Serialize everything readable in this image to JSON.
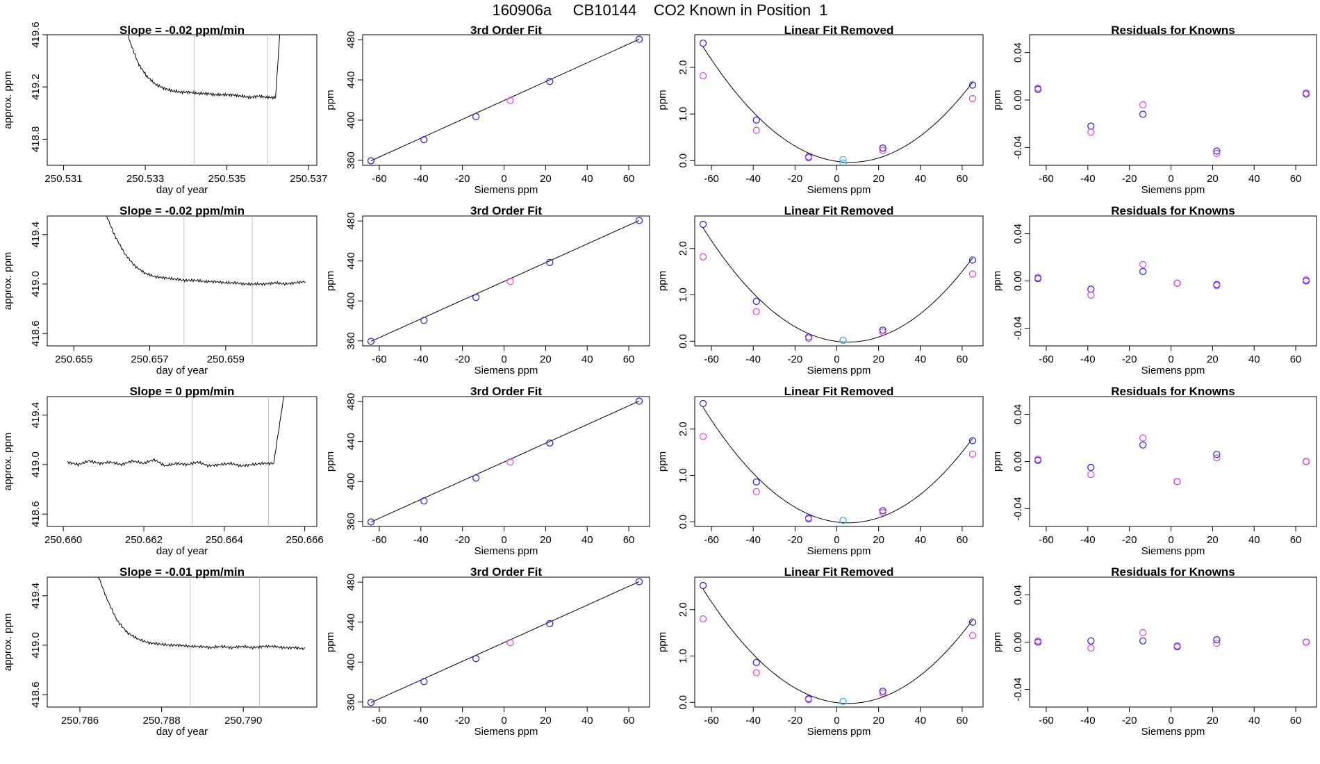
{
  "page": {
    "title": "160906a     CB10144    CO2 Known in Position  1"
  },
  "colors": {
    "trace": "#000000",
    "window_lines": "#c0c0c0",
    "blue_points": "#1a1aff",
    "magenta_points": "#e040e0",
    "cyan_point": "#30b0ff",
    "fit_line": "#000000"
  },
  "chart_data": [
    {
      "row": 1,
      "type": "line",
      "panel": "timeseries",
      "title": "Slope =  -0.02  ppm/min",
      "xlabel": "day of year",
      "ylabel": "approx. ppm",
      "xlim": [
        250.5306,
        250.5372
      ],
      "ylim": [
        418.6,
        419.6
      ],
      "xticks": [
        "250.531",
        "250.533",
        "250.535",
        "250.537"
      ],
      "yticks": [
        "418.8",
        "419.2",
        "419.6"
      ],
      "window": [
        250.5342,
        250.536
      ],
      "x_start": 250.5322,
      "x_end": 250.5364,
      "spike_start": true,
      "spike_end": true,
      "trace_y": [
        420.1,
        419.8,
        419.55,
        419.38,
        419.28,
        419.22,
        419.19,
        419.17,
        419.16,
        419.16,
        419.15,
        419.15,
        419.14,
        419.14,
        419.14,
        419.13,
        419.12,
        419.13,
        419.12,
        419.12,
        420.1
      ]
    },
    {
      "row": 1,
      "type": "scatter",
      "panel": "fit",
      "title": "3rd Order Fit",
      "xlabel": "Siemens ppm",
      "ylabel": "ppm",
      "xlim": [
        -68,
        70
      ],
      "ylim": [
        355,
        485
      ],
      "xticks": [
        "-60",
        "-40",
        "-20",
        "0",
        "20",
        "40",
        "60"
      ],
      "yticks": [
        "360",
        "400",
        "440",
        "480"
      ],
      "x": [
        -64,
        -38.5,
        -13.5,
        3,
        22,
        65
      ],
      "y": [
        359.5,
        380.5,
        403.5,
        419.5,
        438.5,
        480.5
      ]
    },
    {
      "row": 1,
      "type": "scatter",
      "panel": "linear_removed",
      "title": "Linear Fit Removed",
      "xlabel": "Siemens ppm",
      "ylabel": "ppm",
      "xlim": [
        -68,
        70
      ],
      "ylim": [
        -0.1,
        2.7
      ],
      "xticks": [
        "-60",
        "-40",
        "-20",
        "0",
        "20",
        "40",
        "60"
      ],
      "yticks": [
        "0.0",
        "1.0",
        "2.0"
      ],
      "x": [
        -64,
        -38.5,
        -13.5,
        3,
        22,
        65
      ],
      "series": [
        {
          "values": [
            2.52,
            0.87,
            0.08,
            -0.05,
            0.27,
            1.62
          ]
        },
        {
          "values": [
            1.82,
            0.65,
            0.06,
            0.02,
            0.22,
            1.33
          ]
        }
      ]
    },
    {
      "row": 1,
      "type": "scatter",
      "panel": "residuals",
      "title": "Residuals for Knowns",
      "xlabel": "Siemens ppm",
      "ylabel": "ppm",
      "xlim": [
        -68,
        70
      ],
      "ylim": [
        -0.055,
        0.055
      ],
      "xticks": [
        "-60",
        "-40",
        "-20",
        "0",
        "20",
        "40",
        "60"
      ],
      "yticks": [
        "-0.04",
        "0.00",
        "0.04"
      ],
      "x": [
        -64,
        -38.5,
        -13.5,
        3,
        22,
        65
      ],
      "series": [
        {
          "values": [
            0.009,
            -0.022,
            -0.012,
            null,
            -0.043,
            0.005
          ]
        },
        {
          "values": [
            0.01,
            -0.027,
            -0.004,
            null,
            -0.045,
            0.006
          ]
        }
      ]
    },
    {
      "row": 2,
      "type": "line",
      "panel": "timeseries",
      "title": "Slope =  -0.02  ppm/min",
      "xlabel": "day of year",
      "ylabel": "approx. ppm",
      "xlim": [
        250.6543,
        250.6614
      ],
      "ylim": [
        418.5,
        419.55
      ],
      "xticks": [
        "250.655",
        "250.657",
        "250.659"
      ],
      "yticks": [
        "418.6",
        "419.0",
        "419.4"
      ],
      "window": [
        250.6579,
        250.6597
      ],
      "x_start": 250.6558,
      "x_end": 250.6611,
      "spike_start": true,
      "spike_end": false,
      "trace_y": [
        419.6,
        419.4,
        419.25,
        419.15,
        419.09,
        419.06,
        419.05,
        419.04,
        419.03,
        419.03,
        419.02,
        419.02,
        419.01,
        419.01,
        419.0,
        419.0,
        419.0,
        419.01,
        419.0,
        419.01,
        419.02
      ]
    },
    {
      "row": 2,
      "type": "scatter",
      "panel": "fit",
      "title": "3rd Order Fit",
      "xlabel": "Siemens ppm",
      "ylabel": "ppm",
      "xlim": [
        -68,
        70
      ],
      "ylim": [
        355,
        485
      ],
      "xticks": [
        "-60",
        "-40",
        "-20",
        "0",
        "20",
        "40",
        "60"
      ],
      "yticks": [
        "360",
        "400",
        "440",
        "480"
      ],
      "x": [
        -64,
        -38.5,
        -13.5,
        3,
        22,
        65
      ],
      "y": [
        359.5,
        380.5,
        403.5,
        419.5,
        438.5,
        480.5
      ]
    },
    {
      "row": 2,
      "type": "scatter",
      "panel": "linear_removed",
      "title": "Linear Fit Removed",
      "xlabel": "Siemens ppm",
      "ylabel": "ppm",
      "xlim": [
        -68,
        70
      ],
      "ylim": [
        -0.1,
        2.7
      ],
      "xticks": [
        "-60",
        "-40",
        "-20",
        "0",
        "20",
        "40",
        "60"
      ],
      "yticks": [
        "0.0",
        "1.0",
        "2.0"
      ],
      "x": [
        -64,
        -38.5,
        -13.5,
        3,
        22,
        65
      ],
      "series": [
        {
          "values": [
            2.52,
            0.86,
            0.09,
            0.02,
            0.24,
            1.75
          ]
        },
        {
          "values": [
            1.82,
            0.64,
            0.06,
            0.02,
            0.2,
            1.45
          ]
        }
      ]
    },
    {
      "row": 2,
      "type": "scatter",
      "panel": "residuals",
      "title": "Residuals for Knowns",
      "xlabel": "Siemens ppm",
      "ylabel": "ppm",
      "xlim": [
        -68,
        70
      ],
      "ylim": [
        -0.055,
        0.055
      ],
      "xticks": [
        "-60",
        "-40",
        "-20",
        "0",
        "20",
        "40",
        "60"
      ],
      "yticks": [
        "-0.04",
        "0.00",
        "0.04"
      ],
      "x": [
        -64,
        -38.5,
        -13.5,
        3,
        22,
        65
      ],
      "series": [
        {
          "values": [
            0.002,
            -0.007,
            0.008,
            -0.002,
            -0.003,
            0.0
          ]
        },
        {
          "values": [
            0.003,
            -0.012,
            0.014,
            -0.002,
            -0.004,
            0.001
          ]
        }
      ]
    },
    {
      "row": 3,
      "type": "line",
      "panel": "timeseries",
      "title": "Slope =  0  ppm/min",
      "xlabel": "day of year",
      "ylabel": "approx. ppm",
      "xlim": [
        250.6596,
        250.6663
      ],
      "ylim": [
        418.5,
        419.55
      ],
      "xticks": [
        "250.660",
        "250.662",
        "250.664",
        "250.666"
      ],
      "yticks": [
        "418.6",
        "419.0",
        "419.4"
      ],
      "window": [
        250.6632,
        250.6651
      ],
      "x_start": 250.6601,
      "x_end": 250.6655,
      "spike_start": false,
      "spike_end": true,
      "trace_y": [
        419.02,
        419.0,
        419.03,
        419.01,
        419.02,
        419.0,
        419.03,
        419.01,
        419.04,
        418.99,
        419.01,
        419.0,
        419.02,
        418.99,
        419.0,
        419.01,
        418.99,
        419.0,
        419.01,
        419.01,
        419.6
      ]
    },
    {
      "row": 3,
      "type": "scatter",
      "panel": "fit",
      "title": "3rd Order Fit",
      "xlabel": "Siemens ppm",
      "ylabel": "ppm",
      "xlim": [
        -68,
        70
      ],
      "ylim": [
        355,
        485
      ],
      "xticks": [
        "-60",
        "-40",
        "-20",
        "0",
        "20",
        "40",
        "60"
      ],
      "yticks": [
        "360",
        "400",
        "440",
        "480"
      ],
      "x": [
        -64,
        -38.5,
        -13.5,
        3,
        22,
        65
      ],
      "y": [
        359.5,
        380.5,
        403.5,
        419.5,
        438.5,
        480.5
      ]
    },
    {
      "row": 3,
      "type": "scatter",
      "panel": "linear_removed",
      "title": "Linear Fit Removed",
      "xlabel": "Siemens ppm",
      "ylabel": "ppm",
      "xlim": [
        -68,
        70
      ],
      "ylim": [
        -0.1,
        2.7
      ],
      "xticks": [
        "-60",
        "-40",
        "-20",
        "0",
        "20",
        "40",
        "60"
      ],
      "yticks": [
        "0.0",
        "1.0",
        "2.0"
      ],
      "x": [
        -64,
        -38.5,
        -13.5,
        3,
        22,
        65
      ],
      "series": [
        {
          "values": [
            2.55,
            0.86,
            0.08,
            0.03,
            0.24,
            1.75
          ]
        },
        {
          "values": [
            1.84,
            0.65,
            0.06,
            0.03,
            0.2,
            1.46
          ]
        }
      ]
    },
    {
      "row": 3,
      "type": "scatter",
      "panel": "residuals",
      "title": "Residuals for Knowns",
      "xlabel": "Siemens ppm",
      "ylabel": "ppm",
      "xlim": [
        -68,
        70
      ],
      "ylim": [
        -0.055,
        0.055
      ],
      "xticks": [
        "-60",
        "-40",
        "-20",
        "0",
        "20",
        "40",
        "60"
      ],
      "yticks": [
        "-0.04",
        "0.00",
        "0.04"
      ],
      "x": [
        -64,
        -38.5,
        -13.5,
        3,
        22,
        65
      ],
      "series": [
        {
          "values": [
            0.001,
            -0.005,
            0.014,
            -0.017,
            0.006,
            0.0
          ]
        },
        {
          "values": [
            0.002,
            -0.011,
            0.02,
            -0.017,
            0.003,
            0.0
          ]
        }
      ]
    },
    {
      "row": 4,
      "type": "line",
      "panel": "timeseries",
      "title": "Slope =  -0.01  ppm/min",
      "xlabel": "day of year",
      "ylabel": "approx. ppm",
      "xlim": [
        250.7852,
        250.7918
      ],
      "ylim": [
        418.5,
        419.55
      ],
      "xticks": [
        "250.786",
        "250.788",
        "250.790"
      ],
      "yticks": [
        "418.6",
        "419.0",
        "419.4"
      ],
      "window": [
        250.7887,
        250.7904
      ],
      "x_start": 250.7864,
      "x_end": 250.7915,
      "spike_start": true,
      "spike_end": false,
      "trace_y": [
        419.6,
        419.38,
        419.2,
        419.1,
        419.05,
        419.02,
        419.01,
        419.0,
        419.0,
        418.99,
        418.99,
        418.98,
        418.99,
        418.98,
        418.99,
        418.98,
        418.99,
        418.99,
        418.98,
        418.98,
        418.97
      ]
    },
    {
      "row": 4,
      "type": "scatter",
      "panel": "fit",
      "title": "3rd Order Fit",
      "xlabel": "Siemens ppm",
      "ylabel": "ppm",
      "xlim": [
        -68,
        70
      ],
      "ylim": [
        355,
        485
      ],
      "xticks": [
        "-60",
        "-40",
        "-20",
        "0",
        "20",
        "40",
        "60"
      ],
      "yticks": [
        "360",
        "400",
        "440",
        "480"
      ],
      "x": [
        -64,
        -38.5,
        -13.5,
        3,
        22,
        65
      ],
      "y": [
        359.5,
        380.5,
        403.5,
        419.5,
        438.5,
        480.5
      ]
    },
    {
      "row": 4,
      "type": "scatter",
      "panel": "linear_removed",
      "title": "Linear Fit Removed",
      "xlabel": "Siemens ppm",
      "ylabel": "ppm",
      "xlim": [
        -68,
        70
      ],
      "ylim": [
        -0.1,
        2.7
      ],
      "xticks": [
        "-60",
        "-40",
        "-20",
        "0",
        "20",
        "40",
        "60"
      ],
      "yticks": [
        "0.0",
        "1.0",
        "2.0"
      ],
      "x": [
        -64,
        -38.5,
        -13.5,
        3,
        22,
        65
      ],
      "series": [
        {
          "values": [
            2.52,
            0.86,
            0.08,
            0.02,
            0.24,
            1.73
          ]
        },
        {
          "values": [
            1.8,
            0.64,
            0.06,
            0.02,
            0.2,
            1.44
          ]
        }
      ]
    },
    {
      "row": 4,
      "type": "scatter",
      "panel": "residuals",
      "title": "Residuals for Knowns",
      "xlabel": "Siemens ppm",
      "ylabel": "ppm",
      "xlim": [
        -68,
        70
      ],
      "ylim": [
        -0.055,
        0.055
      ],
      "xticks": [
        "-60",
        "-40",
        "-20",
        "0",
        "20",
        "40",
        "60"
      ],
      "yticks": [
        "-0.04",
        "0.00",
        "0.04"
      ],
      "x": [
        -64,
        -38.5,
        -13.5,
        3,
        22,
        65
      ],
      "series": [
        {
          "values": [
            0.0,
            0.001,
            0.001,
            -0.004,
            0.002,
            0.0
          ]
        },
        {
          "values": [
            0.001,
            -0.005,
            0.008,
            -0.003,
            -0.001,
            0.0
          ]
        }
      ]
    }
  ]
}
